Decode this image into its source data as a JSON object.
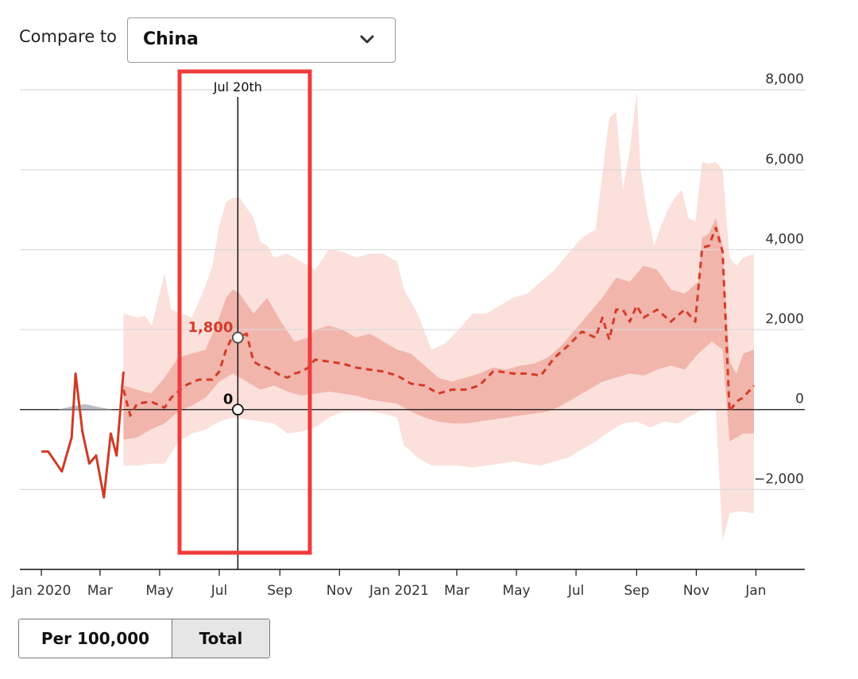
{
  "compare": {
    "label": "Compare to",
    "selected": "China",
    "chevron_icon": "chevron-down-icon"
  },
  "toggle": {
    "per_label": "Per 100,000",
    "total_label": "Total",
    "active": "Total"
  },
  "colors": {
    "observed": "#d03a26",
    "estimate": "#d63b27",
    "band_outer": "#fbe0db",
    "band_inner": "#efada3",
    "highlight": "#ee3c3c",
    "other_series": "#a9aeb5"
  },
  "chart_data": {
    "type": "line",
    "title": "",
    "xlabel": "",
    "ylabel": "",
    "ylim": [
      -4000,
      8500
    ],
    "xlim": [
      "2019-12-10",
      "2022-02-20"
    ],
    "yticks": [
      8000,
      6000,
      4000,
      2000,
      0,
      -2000
    ],
    "ytick_labels": [
      "8,000",
      "6,000",
      "4,000",
      "2,000",
      "0",
      "−2,000"
    ],
    "xticks": [
      {
        "date": "2020-01-01",
        "label": "Jan 2020"
      },
      {
        "date": "2020-03-01",
        "label": "Mar"
      },
      {
        "date": "2020-05-01",
        "label": "May"
      },
      {
        "date": "2020-07-01",
        "label": "Jul"
      },
      {
        "date": "2020-09-01",
        "label": "Sep"
      },
      {
        "date": "2020-11-01",
        "label": "Nov"
      },
      {
        "date": "2021-01-01",
        "label": "Jan 2021"
      },
      {
        "date": "2021-03-01",
        "label": "Mar"
      },
      {
        "date": "2021-05-01",
        "label": "May"
      },
      {
        "date": "2021-07-01",
        "label": "Jul"
      },
      {
        "date": "2021-09-01",
        "label": "Sep"
      },
      {
        "date": "2021-11-01",
        "label": "Nov"
      },
      {
        "date": "2022-01-01",
        "label": "Jan"
      }
    ],
    "grid": true,
    "observed": {
      "x": [
        "2020-01-01",
        "2020-01-08",
        "2020-01-22",
        "2020-02-01",
        "2020-02-05",
        "2020-02-12",
        "2020-02-19",
        "2020-02-26",
        "2020-03-05",
        "2020-03-12",
        "2020-03-18",
        "2020-03-25"
      ],
      "values": [
        -1050,
        -1050,
        -1550,
        -700,
        900,
        -550,
        -1350,
        -1150,
        -2200,
        -600,
        -1150,
        950
      ]
    },
    "estimate_upper_outer": {
      "x": [
        "2020-03-25",
        "2020-04-08",
        "2020-04-16",
        "2020-04-23",
        "2020-05-06",
        "2020-05-13",
        "2020-06-03",
        "2020-06-17",
        "2020-06-24",
        "2020-07-01",
        "2020-07-08",
        "2020-07-15",
        "2020-07-22",
        "2020-08-05",
        "2020-08-12",
        "2020-08-19",
        "2020-08-26",
        "2020-09-09",
        "2020-09-23",
        "2020-10-07",
        "2020-10-21",
        "2020-11-04",
        "2020-11-18",
        "2020-12-02",
        "2020-12-16",
        "2020-12-30",
        "2021-01-06",
        "2021-01-20",
        "2021-02-03",
        "2021-02-17",
        "2021-03-03",
        "2021-03-17",
        "2021-03-31",
        "2021-04-14",
        "2021-04-28",
        "2021-05-12",
        "2021-05-26",
        "2021-06-09",
        "2021-06-23",
        "2021-07-07",
        "2021-07-21",
        "2021-08-04",
        "2021-08-11",
        "2021-08-18",
        "2021-08-25",
        "2021-09-01",
        "2021-09-05",
        "2021-09-12",
        "2021-09-19",
        "2021-09-26",
        "2021-10-03",
        "2021-10-10",
        "2021-10-17",
        "2021-10-24",
        "2021-10-31",
        "2021-11-07",
        "2021-11-14",
        "2021-11-21",
        "2021-11-28",
        "2021-12-05",
        "2021-12-12",
        "2021-12-19",
        "2021-12-30"
      ],
      "values": [
        2400,
        2300,
        2350,
        2100,
        3400,
        2500,
        2300,
        3100,
        3600,
        4600,
        5200,
        5300,
        5300,
        4800,
        4200,
        4100,
        3800,
        3900,
        3700,
        3500,
        4000,
        3950,
        3800,
        3900,
        3900,
        3700,
        3000,
        2400,
        1500,
        1650,
        2000,
        2400,
        2400,
        2600,
        2800,
        2900,
        3200,
        3500,
        3900,
        4300,
        4500,
        7300,
        7450,
        5500,
        6500,
        7950,
        6000,
        4900,
        4100,
        4600,
        5000,
        5300,
        5500,
        4800,
        4700,
        6200,
        6150,
        6200,
        6000,
        3800,
        3600,
        3800,
        3900
      ]
    },
    "estimate_lower_outer": {
      "x": [
        "2020-03-25",
        "2020-04-08",
        "2020-04-22",
        "2020-05-06",
        "2020-05-20",
        "2020-06-03",
        "2020-06-17",
        "2020-07-01",
        "2020-07-15",
        "2020-07-29",
        "2020-08-12",
        "2020-08-26",
        "2020-09-09",
        "2020-09-23",
        "2020-10-07",
        "2020-10-21",
        "2020-11-04",
        "2020-11-18",
        "2020-12-02",
        "2020-12-16",
        "2020-12-30",
        "2021-01-06",
        "2021-01-20",
        "2021-02-03",
        "2021-02-17",
        "2021-03-03",
        "2021-03-17",
        "2021-03-31",
        "2021-04-14",
        "2021-04-28",
        "2021-05-12",
        "2021-05-26",
        "2021-06-09",
        "2021-06-23",
        "2021-07-07",
        "2021-07-21",
        "2021-08-04",
        "2021-08-18",
        "2021-09-01",
        "2021-09-15",
        "2021-09-29",
        "2021-10-13",
        "2021-10-27",
        "2021-11-07",
        "2021-11-14",
        "2021-11-21",
        "2021-11-28",
        "2021-12-05",
        "2021-12-12",
        "2021-12-19",
        "2021-12-30"
      ],
      "values": [
        -1400,
        -1400,
        -1350,
        -1350,
        -800,
        -600,
        -500,
        -300,
        -200,
        -250,
        -300,
        -350,
        -600,
        -550,
        -450,
        -200,
        -50,
        -50,
        -50,
        -100,
        -200,
        -900,
        -1200,
        -1400,
        -1400,
        -1400,
        -1450,
        -1400,
        -1350,
        -1300,
        -1350,
        -1400,
        -1300,
        -1200,
        -1000,
        -800,
        -550,
        -350,
        -300,
        -450,
        -300,
        -350,
        -150,
        0,
        0,
        0,
        -3300,
        -2600,
        -2550,
        -2550,
        -2600
      ]
    },
    "estimate_upper_inner": {
      "x": [
        "2020-03-25",
        "2020-04-08",
        "2020-04-22",
        "2020-05-06",
        "2020-05-20",
        "2020-06-03",
        "2020-06-17",
        "2020-07-01",
        "2020-07-08",
        "2020-07-15",
        "2020-07-22",
        "2020-08-05",
        "2020-08-19",
        "2020-09-02",
        "2020-09-16",
        "2020-09-30",
        "2020-10-07",
        "2020-10-21",
        "2020-11-04",
        "2020-11-18",
        "2020-12-02",
        "2020-12-16",
        "2020-12-30",
        "2021-01-13",
        "2021-01-27",
        "2021-02-10",
        "2021-02-24",
        "2021-03-10",
        "2021-03-24",
        "2021-04-07",
        "2021-04-21",
        "2021-05-05",
        "2021-05-19",
        "2021-06-02",
        "2021-06-16",
        "2021-06-30",
        "2021-07-14",
        "2021-07-28",
        "2021-08-11",
        "2021-08-25",
        "2021-09-08",
        "2021-09-22",
        "2021-10-06",
        "2021-10-20",
        "2021-11-03",
        "2021-11-07",
        "2021-11-14",
        "2021-11-21",
        "2021-11-28",
        "2021-12-05",
        "2021-12-12",
        "2021-12-19",
        "2021-12-30"
      ],
      "values": [
        600,
        500,
        400,
        800,
        1300,
        1400,
        1500,
        2300,
        2800,
        3000,
        2900,
        2400,
        2800,
        2200,
        1700,
        1800,
        2000,
        2100,
        2000,
        1800,
        1900,
        1700,
        1500,
        1400,
        1100,
        800,
        700,
        800,
        900,
        1050,
        1000,
        1100,
        1150,
        1300,
        1600,
        2000,
        2400,
        2800,
        3300,
        3200,
        3600,
        3500,
        3000,
        2900,
        3200,
        4300,
        4400,
        4800,
        4100,
        1200,
        900,
        1400,
        1500
      ]
    },
    "estimate_lower_inner": {
      "x": [
        "2020-03-25",
        "2020-04-08",
        "2020-04-22",
        "2020-05-06",
        "2020-05-20",
        "2020-06-03",
        "2020-06-17",
        "2020-07-01",
        "2020-07-15",
        "2020-07-29",
        "2020-08-12",
        "2020-08-26",
        "2020-09-09",
        "2020-09-23",
        "2020-10-07",
        "2020-10-21",
        "2020-11-04",
        "2020-11-18",
        "2020-12-02",
        "2020-12-16",
        "2020-12-30",
        "2021-01-13",
        "2021-01-27",
        "2021-02-10",
        "2021-02-24",
        "2021-03-10",
        "2021-03-24",
        "2021-04-07",
        "2021-04-21",
        "2021-05-05",
        "2021-05-19",
        "2021-06-02",
        "2021-06-16",
        "2021-06-30",
        "2021-07-14",
        "2021-07-28",
        "2021-08-11",
        "2021-08-25",
        "2021-09-08",
        "2021-09-22",
        "2021-10-06",
        "2021-10-20",
        "2021-11-03",
        "2021-11-17",
        "2021-11-28",
        "2021-12-05",
        "2021-12-19",
        "2021-12-30"
      ],
      "values": [
        -750,
        -700,
        -500,
        -350,
        -50,
        100,
        300,
        700,
        900,
        700,
        500,
        600,
        450,
        350,
        400,
        450,
        400,
        350,
        250,
        200,
        150,
        -50,
        -200,
        -300,
        -350,
        -350,
        -300,
        -250,
        -200,
        -150,
        -100,
        -50,
        100,
        300,
        500,
        700,
        800,
        900,
        850,
        1000,
        1100,
        1000,
        1400,
        1700,
        1500,
        -800,
        -600,
        -600
      ]
    },
    "estimate": {
      "x": [
        "2020-03-25",
        "2020-04-01",
        "2020-04-08",
        "2020-04-22",
        "2020-05-06",
        "2020-05-13",
        "2020-05-27",
        "2020-06-10",
        "2020-06-24",
        "2020-07-01",
        "2020-07-08",
        "2020-07-15",
        "2020-07-20",
        "2020-07-29",
        "2020-08-05",
        "2020-08-12",
        "2020-08-19",
        "2020-08-26",
        "2020-09-02",
        "2020-09-09",
        "2020-09-16",
        "2020-09-23",
        "2020-09-30",
        "2020-10-07",
        "2020-10-21",
        "2020-11-04",
        "2020-11-18",
        "2020-12-02",
        "2020-12-16",
        "2020-12-30",
        "2021-01-13",
        "2021-01-27",
        "2021-02-10",
        "2021-02-17",
        "2021-02-24",
        "2021-03-10",
        "2021-03-24",
        "2021-04-07",
        "2021-04-14",
        "2021-04-28",
        "2021-05-12",
        "2021-05-26",
        "2021-06-09",
        "2021-06-23",
        "2021-07-07",
        "2021-07-21",
        "2021-07-28",
        "2021-08-04",
        "2021-08-11",
        "2021-08-18",
        "2021-08-25",
        "2021-09-01",
        "2021-09-08",
        "2021-09-22",
        "2021-10-06",
        "2021-10-20",
        "2021-10-31",
        "2021-11-07",
        "2021-11-14",
        "2021-11-21",
        "2021-11-28",
        "2021-12-05",
        "2021-12-12",
        "2021-12-19",
        "2021-12-30"
      ],
      "values": [
        500,
        -150,
        150,
        200,
        50,
        300,
        600,
        750,
        750,
        950,
        1500,
        1850,
        1800,
        1900,
        1200,
        1100,
        1050,
        950,
        850,
        800,
        900,
        950,
        1050,
        1250,
        1200,
        1150,
        1050,
        1000,
        950,
        850,
        650,
        600,
        400,
        450,
        500,
        500,
        600,
        950,
        950,
        900,
        900,
        850,
        1300,
        1600,
        1950,
        1800,
        2300,
        1750,
        2500,
        2500,
        2200,
        2600,
        2300,
        2500,
        2200,
        2500,
        2200,
        4050,
        4100,
        4550,
        3950,
        -50,
        200,
        300,
        600
      ]
    },
    "other_series": {
      "x": [
        "2020-01-18",
        "2020-02-01",
        "2020-02-15",
        "2020-02-29",
        "2020-03-14"
      ],
      "values": [
        0,
        80,
        140,
        60,
        0
      ]
    },
    "crosshair": {
      "date": "2020-07-20",
      "label": "Jul 20th"
    },
    "highlight_points": [
      {
        "value": 1800,
        "label": "1,800",
        "color": "#d63b27"
      },
      {
        "value": 0,
        "label": "0",
        "color": "#111111"
      }
    ]
  }
}
